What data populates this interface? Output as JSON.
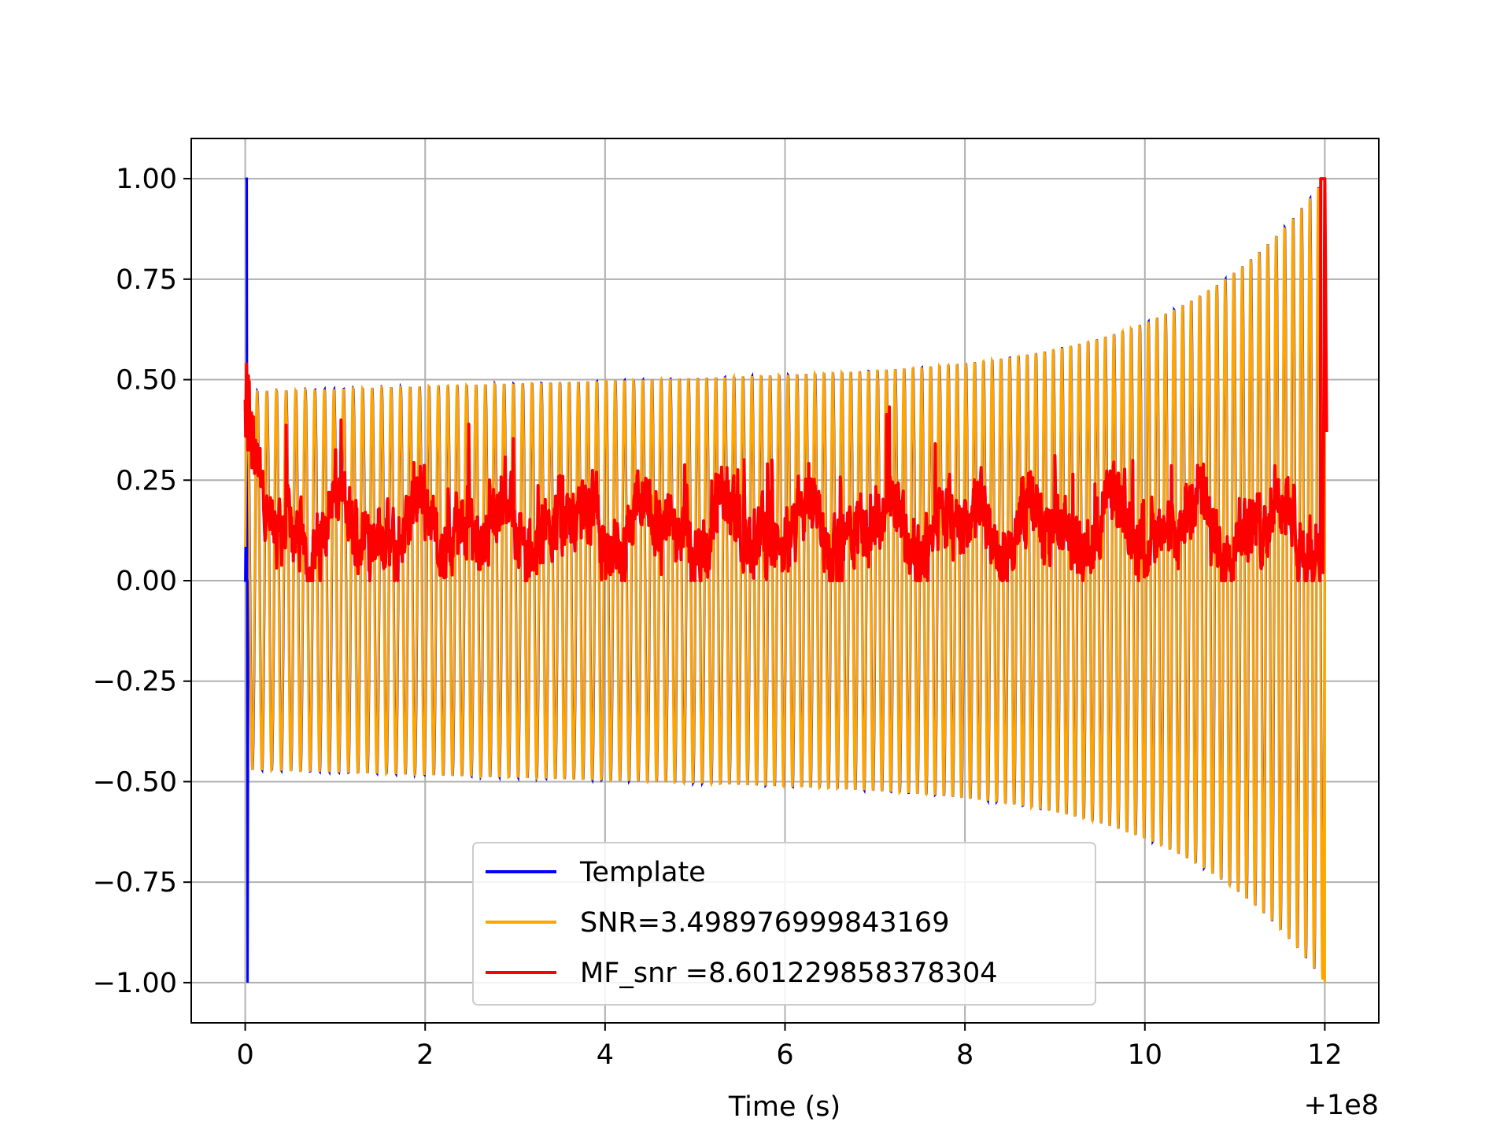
{
  "chart_data": {
    "type": "line",
    "title": "",
    "xlabel": "Time (s)",
    "ylabel": "",
    "x_offset_label": "+1e8",
    "xlim": [
      -0.6,
      12.6
    ],
    "ylim": [
      -1.1,
      1.1
    ],
    "xticks": [
      0,
      2,
      4,
      6,
      8,
      10,
      12
    ],
    "xtick_labels": [
      "0",
      "2",
      "4",
      "6",
      "8",
      "10",
      "12"
    ],
    "yticks": [
      1.0,
      0.75,
      0.5,
      0.25,
      0.0,
      -0.25,
      -0.5,
      -0.75,
      -1.0
    ],
    "ytick_labels": [
      "1.00",
      "0.75",
      "0.50",
      "0.25",
      "0.00",
      "−0.25",
      "−0.50",
      "−0.75",
      "−1.00"
    ],
    "grid": true,
    "legend_position": "lower-center",
    "series": [
      {
        "name": "Template",
        "color": "#0000ff",
        "x_range": [
          0,
          12
        ],
        "description_points": {
          "spike_at_start": {
            "x": 0.0,
            "ymax": 1.0,
            "ymin": -1.0
          },
          "envelope_start": 0.47,
          "envelope_mid": 0.55,
          "envelope_end": 1.0,
          "cycles": 120
        }
      },
      {
        "name": "SNR=3.498976999843169",
        "color": "#ffa500",
        "x_range": [
          0,
          12
        ],
        "description_points": {
          "envelope_start": 0.47,
          "envelope_mid": 0.55,
          "envelope_end": 1.0,
          "cycles": 120
        }
      },
      {
        "name": "MF_snr =8.601229858378304",
        "color": "#ff0000",
        "x_range": [
          0,
          12
        ],
        "description_points": {
          "baseline_mean": 0.13,
          "baseline_min": 0.0,
          "baseline_max": 0.47,
          "start_peak": 0.54,
          "end_peak": 1.0,
          "end_value": 0.37
        }
      }
    ]
  }
}
